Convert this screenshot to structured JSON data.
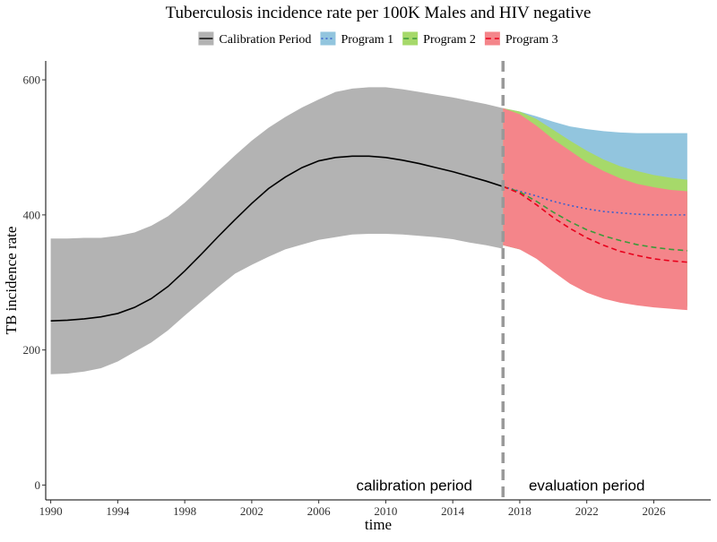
{
  "chart_data": {
    "type": "area",
    "title": "Tuberculosis incidence rate per 100K Males and HIV negative",
    "xlabel": "time",
    "ylabel": "TB incidence rate",
    "xlim": [
      1989.7,
      2029.4
    ],
    "ylim": [
      -22,
      628
    ],
    "x_ticks": [
      1990,
      1994,
      1998,
      2002,
      2006,
      2010,
      2014,
      2018,
      2022,
      2026
    ],
    "y_ticks": [
      0,
      200,
      400,
      600
    ],
    "grid": false,
    "legend_position": "top",
    "legend": [
      {
        "label": "Calibration Period",
        "color": "#b3b3b3",
        "line_color": "#000000",
        "dash": "solid"
      },
      {
        "label": "Program 1",
        "color": "#92c5de",
        "line_color": "#3a5fcd",
        "dash": "dotted"
      },
      {
        "label": "Program 2",
        "color": "#a6d96a",
        "line_color": "#3a9a3a",
        "dash": "dashed"
      },
      {
        "label": "Program 3",
        "color": "#f4858a",
        "line_color": "#e8001b",
        "dash": "dashed"
      }
    ],
    "divider": {
      "x": 2017,
      "color": "#999999"
    },
    "annotations": [
      {
        "text": "calibration period",
        "x": 2011.7,
        "y": 0
      },
      {
        "text": "evaluation period",
        "x": 2022,
        "y": 0
      }
    ],
    "calibration": {
      "x": [
        1990,
        1991,
        1992,
        1993,
        1994,
        1995,
        1996,
        1997,
        1998,
        1999,
        2000,
        2001,
        2002,
        2003,
        2004,
        2005,
        2006,
        2007,
        2008,
        2009,
        2010,
        2011,
        2012,
        2013,
        2014,
        2015,
        2016,
        2017
      ],
      "mean": [
        243,
        244,
        246,
        249,
        254,
        263,
        276,
        294,
        317,
        342,
        368,
        393,
        417,
        439,
        456,
        470,
        480,
        485,
        487,
        487,
        485,
        481,
        476,
        470,
        464,
        457,
        450,
        442
      ],
      "lower": [
        164,
        165,
        168,
        173,
        183,
        197,
        211,
        229,
        251,
        272,
        293,
        313,
        326,
        338,
        349,
        356,
        363,
        367,
        371,
        372,
        372,
        371,
        369,
        367,
        364,
        359,
        355,
        350
      ],
      "upper": [
        365,
        365,
        366,
        366,
        369,
        374,
        384,
        398,
        418,
        441,
        465,
        488,
        510,
        529,
        545,
        559,
        571,
        582,
        587,
        589,
        589,
        586,
        582,
        578,
        574,
        569,
        564,
        558
      ]
    },
    "series": [
      {
        "name": "Program 1",
        "x": [
          2017,
          2018,
          2019,
          2020,
          2021,
          2022,
          2023,
          2024,
          2025,
          2026,
          2027,
          2028
        ],
        "mean": [
          442,
          435,
          428,
          420,
          414,
          409,
          405,
          403,
          401,
          400,
          400,
          400
        ],
        "lower": [
          355,
          349,
          338,
          320,
          303,
          291,
          283,
          277,
          273,
          270,
          268,
          266
        ],
        "upper": [
          558,
          553,
          546,
          538,
          531,
          527,
          524,
          522,
          521,
          521,
          521,
          521
        ]
      },
      {
        "name": "Program 2",
        "x": [
          2017,
          2018,
          2019,
          2020,
          2021,
          2022,
          2023,
          2024,
          2025,
          2026,
          2027,
          2028
        ],
        "mean": [
          442,
          434,
          420,
          404,
          390,
          378,
          369,
          362,
          356,
          352,
          349,
          347
        ],
        "lower": [
          355,
          349,
          337,
          318,
          301,
          289,
          281,
          275,
          271,
          268,
          266,
          264
        ],
        "upper": [
          558,
          553,
          542,
          526,
          510,
          495,
          482,
          472,
          465,
          459,
          455,
          452
        ]
      },
      {
        "name": "Program 3",
        "x": [
          2017,
          2018,
          2019,
          2020,
          2021,
          2022,
          2023,
          2024,
          2025,
          2026,
          2027,
          2028
        ],
        "mean": [
          442,
          432,
          415,
          396,
          380,
          366,
          355,
          346,
          340,
          335,
          332,
          330
        ],
        "lower": [
          355,
          349,
          335,
          316,
          298,
          285,
          276,
          270,
          266,
          263,
          261,
          259
        ],
        "upper": [
          558,
          549,
          532,
          512,
          495,
          478,
          465,
          454,
          446,
          441,
          437,
          435
        ]
      }
    ]
  }
}
